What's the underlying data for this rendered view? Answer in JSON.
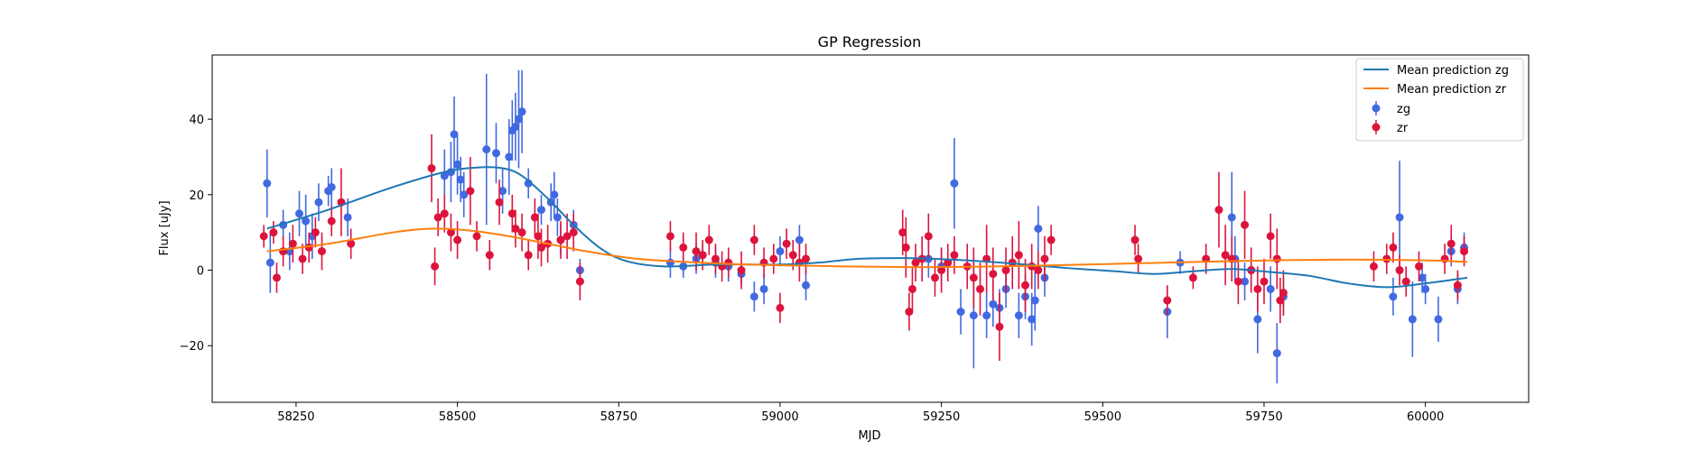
{
  "chart_data": {
    "type": "scatter",
    "title": "GP Regression",
    "xlabel": "MJD",
    "ylabel": "Flux [uJy]",
    "xlim": [
      58120,
      60160
    ],
    "ylim": [
      -35,
      57
    ],
    "xticks": [
      58250,
      58500,
      58750,
      59000,
      59250,
      59500,
      59750,
      60000
    ],
    "yticks": [
      -20,
      0,
      20,
      40
    ],
    "grid": false,
    "legend_position": "top-right",
    "colors": {
      "mean_zg": "#1f77b4",
      "mean_zr": "#ff7f0e",
      "zg": "#4169e1",
      "zr": "#dc143c"
    },
    "series": [
      {
        "name": "Mean prediction zg",
        "kind": "line",
        "color": "#1f77b4",
        "x": [
          58205,
          58300,
          58400,
          58480,
          58530,
          58570,
          58600,
          58640,
          58680,
          58720,
          58760,
          58820,
          58900,
          59000,
          59060,
          59120,
          59190,
          59240,
          59300,
          59380,
          59450,
          59520,
          59580,
          59640,
          59700,
          59760,
          59820,
          59880,
          59940,
          60000,
          60065
        ],
        "y": [
          11,
          16,
          22,
          26,
          27.2,
          27,
          25,
          19,
          12,
          6,
          2.5,
          1,
          1.5,
          1.5,
          2,
          3,
          3.2,
          3,
          2.5,
          1.5,
          0.5,
          -0.3,
          -1,
          -0.3,
          0.3,
          -0.5,
          -1.5,
          -3.5,
          -4.5,
          -3.5,
          -2
        ]
      },
      {
        "name": "Mean prediction zr",
        "kind": "line",
        "color": "#ff7f0e",
        "x": [
          58205,
          58300,
          58400,
          58460,
          58520,
          58580,
          58640,
          58700,
          58780,
          58900,
          59000,
          59100,
          59200,
          59300,
          59400,
          59500,
          59600,
          59700,
          59800,
          59900,
          60000,
          60065
        ],
        "y": [
          5,
          7,
          10,
          11,
          10.5,
          9,
          7,
          5,
          3,
          1.8,
          1.3,
          1,
          0.8,
          0.9,
          1.2,
          1.6,
          2,
          2.4,
          2.7,
          2.8,
          2.6,
          2.2
        ]
      },
      {
        "name": "zg",
        "kind": "errorbar",
        "color": "#4169e1",
        "x": [
          58205,
          58210,
          58230,
          58240,
          58255,
          58265,
          58275,
          58285,
          58300,
          58305,
          58330,
          58480,
          58490,
          58495,
          58500,
          58505,
          58510,
          58545,
          58560,
          58570,
          58580,
          58585,
          58590,
          58595,
          58600,
          58610,
          58630,
          58645,
          58650,
          58655,
          58660,
          58680,
          58690,
          58830,
          58850,
          58870,
          58880,
          58900,
          58920,
          58940,
          58960,
          58975,
          59000,
          59030,
          59040,
          59230,
          59250,
          59270,
          59280,
          59300,
          59320,
          59330,
          59340,
          59350,
          59370,
          59380,
          59390,
          59395,
          59400,
          59410,
          59600,
          59620,
          59700,
          59705,
          59720,
          59730,
          59740,
          59760,
          59770,
          59780,
          59950,
          59960,
          59980,
          59995,
          60000,
          60020,
          60040,
          60050,
          60060
        ],
        "y": [
          23,
          2,
          12,
          5,
          15,
          13,
          9,
          18,
          21,
          22,
          14,
          25,
          26,
          36,
          28,
          24,
          20,
          32,
          31,
          21,
          30,
          37,
          38,
          40,
          42,
          23,
          16,
          18,
          20,
          14,
          8,
          12,
          0,
          2,
          1,
          3,
          4,
          2,
          1,
          -1,
          -7,
          -5,
          5,
          8,
          -4,
          3,
          1,
          23,
          -11,
          -12,
          -12,
          -9,
          -10,
          -5,
          -12,
          -7,
          -13,
          -8,
          11,
          -2,
          -11,
          2,
          14,
          3,
          -3,
          0,
          -13,
          -5,
          -22,
          -7,
          -7,
          14,
          -13,
          -2,
          -5,
          -13,
          5,
          -5,
          6
        ],
        "yerr": [
          9,
          8,
          4,
          5,
          6,
          7,
          6,
          5,
          4,
          5,
          5,
          7,
          8,
          10,
          8,
          6,
          6,
          20,
          8,
          6,
          10,
          8,
          9,
          13,
          11,
          4,
          4,
          5,
          6,
          5,
          4,
          4,
          3,
          4,
          3,
          4,
          3,
          4,
          4,
          3,
          4,
          4,
          4,
          4,
          4,
          5,
          5,
          12,
          6,
          14,
          6,
          6,
          5,
          5,
          6,
          6,
          7,
          8,
          6,
          5,
          7,
          3,
          12,
          6,
          5,
          5,
          9,
          6,
          8,
          5,
          5,
          15,
          10,
          4,
          4,
          6,
          4,
          4,
          4
        ]
      },
      {
        "name": "zr",
        "kind": "errorbar",
        "color": "#dc143c",
        "x": [
          58200,
          58215,
          58220,
          58230,
          58245,
          58260,
          58270,
          58280,
          58290,
          58305,
          58320,
          58335,
          58460,
          58465,
          58470,
          58480,
          58490,
          58500,
          58520,
          58530,
          58550,
          58565,
          58585,
          58590,
          58600,
          58610,
          58620,
          58625,
          58630,
          58640,
          58660,
          58670,
          58680,
          58690,
          58830,
          58850,
          58870,
          58880,
          58890,
          58900,
          58910,
          58920,
          58940,
          58960,
          58975,
          58990,
          59000,
          59010,
          59020,
          59030,
          59040,
          59190,
          59195,
          59200,
          59205,
          59210,
          59220,
          59230,
          59240,
          59250,
          59260,
          59270,
          59290,
          59300,
          59310,
          59320,
          59330,
          59340,
          59350,
          59360,
          59370,
          59380,
          59390,
          59400,
          59410,
          59420,
          59550,
          59555,
          59600,
          59640,
          59660,
          59680,
          59690,
          59700,
          59710,
          59720,
          59730,
          59740,
          59750,
          59760,
          59770,
          59775,
          59780,
          59920,
          59940,
          59950,
          59960,
          59970,
          59990,
          60030,
          60040,
          60050,
          60060
        ],
        "y": [
          9,
          10,
          -2,
          5,
          7,
          3,
          6,
          10,
          5,
          13,
          18,
          7,
          27,
          1,
          14,
          15,
          10,
          8,
          21,
          9,
          4,
          18,
          15,
          11,
          10,
          4,
          14,
          9,
          6,
          7,
          8,
          9,
          10,
          -3,
          9,
          6,
          5,
          4,
          8,
          3,
          1,
          2,
          0,
          8,
          2,
          3,
          -10,
          7,
          4,
          2,
          3,
          10,
          6,
          -11,
          -5,
          2,
          3,
          9,
          -2,
          0,
          2,
          4,
          1,
          -2,
          -5,
          3,
          -1,
          -15,
          0,
          2,
          4,
          -4,
          1,
          0,
          3,
          8,
          8,
          3,
          -8,
          -2,
          3,
          16,
          4,
          3,
          -3,
          12,
          0,
          -5,
          -3,
          9,
          3,
          -8,
          -6,
          1,
          3,
          6,
          0,
          -3,
          1,
          3,
          7,
          -4,
          5
        ],
        "yerr": [
          3,
          3,
          4,
          4,
          5,
          4,
          4,
          4,
          5,
          4,
          9,
          4,
          9,
          5,
          5,
          5,
          5,
          5,
          9,
          4,
          4,
          6,
          5,
          5,
          5,
          4,
          5,
          6,
          5,
          5,
          5,
          6,
          5,
          5,
          4,
          4,
          5,
          4,
          4,
          4,
          4,
          4,
          5,
          4,
          4,
          4,
          4,
          4,
          4,
          5,
          4,
          6,
          8,
          5,
          6,
          5,
          6,
          6,
          5,
          6,
          5,
          5,
          6,
          8,
          7,
          9,
          7,
          9,
          6,
          7,
          9,
          7,
          6,
          5,
          6,
          4,
          4,
          4,
          4,
          3,
          4,
          10,
          8,
          6,
          6,
          9,
          6,
          6,
          6,
          6,
          8,
          6,
          6,
          4,
          4,
          4,
          4,
          4,
          4,
          4,
          5,
          4,
          4
        ]
      }
    ]
  }
}
